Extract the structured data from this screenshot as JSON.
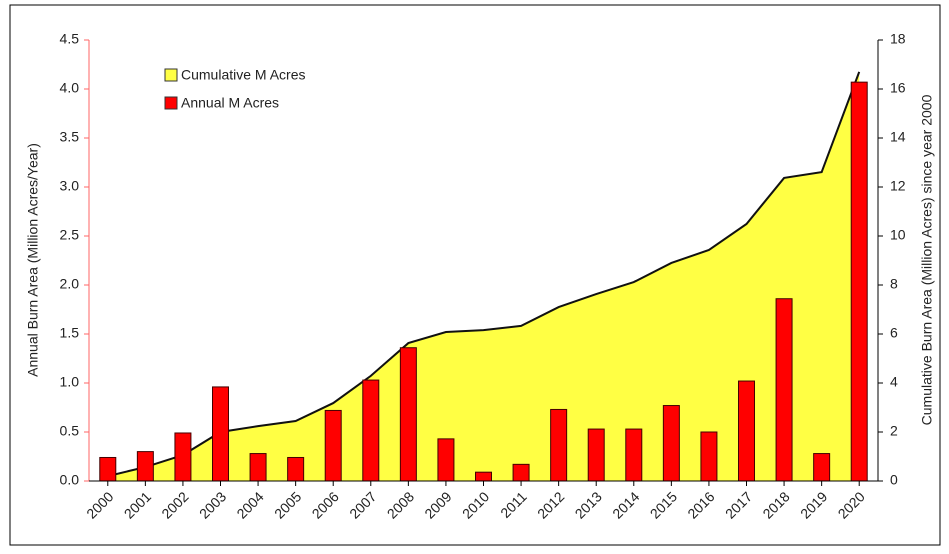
{
  "chart_data": {
    "type": "bar-area",
    "y_label": "Annual  Burn Area (Million Acres/Year)",
    "y2_label": "Cumulative Burn Area (Million Acres) since year 2000",
    "categories": [
      "2000",
      "2001",
      "2002",
      "2003",
      "2004",
      "2005",
      "2006",
      "2007",
      "2008",
      "2009",
      "2010",
      "2011",
      "2012",
      "2013",
      "2014",
      "2015",
      "2016",
      "2017",
      "2018",
      "2019",
      "2020"
    ],
    "series": [
      {
        "name": "Cumulative M Acres",
        "type": "area",
        "axis": "y2",
        "color": "#ffff44",
        "values": [
          0.2,
          0.57,
          1.06,
          2.0,
          2.24,
          2.45,
          3.18,
          4.29,
          5.63,
          6.08,
          6.16,
          6.33,
          7.1,
          7.63,
          8.12,
          8.9,
          9.43,
          10.49,
          12.37,
          12.61,
          16.7
        ]
      },
      {
        "name": "Annual M Acres",
        "type": "bar",
        "color": "#ff0000",
        "values": [
          0.24,
          0.3,
          0.49,
          0.96,
          0.28,
          0.24,
          0.72,
          1.03,
          1.36,
          0.43,
          0.09,
          0.17,
          0.73,
          0.53,
          0.53,
          0.77,
          0.5,
          1.02,
          1.86,
          0.28,
          4.07
        ]
      }
    ],
    "ylim": [
      0,
      4.5
    ],
    "yticks": [
      {
        "value": 0,
        "label": "0.0"
      },
      {
        "value": 0.5,
        "label": "0.5"
      },
      {
        "value": 1,
        "label": "1.0"
      },
      {
        "value": 1.5,
        "label": "1.5"
      },
      {
        "value": 2,
        "label": "2.0"
      },
      {
        "value": 2.5,
        "label": "2.5"
      },
      {
        "value": 3,
        "label": "3.0"
      },
      {
        "value": 3.5,
        "label": "3.5"
      },
      {
        "value": 4,
        "label": "4.0"
      },
      {
        "value": 4.5,
        "label": "4.5"
      }
    ],
    "y2lim": [
      0,
      18
    ],
    "y2ticks": [
      0,
      2,
      4,
      6,
      8,
      10,
      12,
      14,
      16,
      18
    ],
    "legend": "upper-left"
  }
}
